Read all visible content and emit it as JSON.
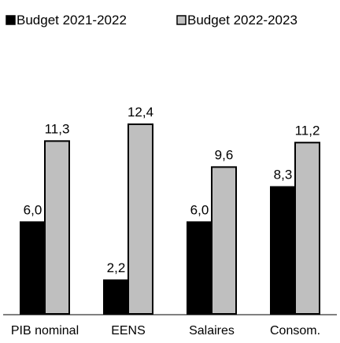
{
  "chart_data": {
    "type": "bar",
    "title": "",
    "xlabel": "",
    "ylabel": "",
    "categories": [
      "PIB nominal",
      "EENS",
      "Salaires",
      "Consom."
    ],
    "series": [
      {
        "name": "Budget 2021-2022",
        "color": "#000000",
        "values": [
          6.0,
          2.2,
          6.0,
          8.3
        ],
        "labels": [
          "6,0",
          "2,2",
          "6,0",
          "8,3"
        ]
      },
      {
        "name": "Budget 2022-2023",
        "color": "#bfbfbf",
        "values": [
          11.3,
          12.4,
          9.6,
          11.2
        ],
        "labels": [
          "11,3",
          "12,4",
          "9,6",
          "11,2"
        ]
      }
    ],
    "ylim": [
      0,
      14
    ],
    "grid": false,
    "legend_position": "top-left",
    "data_labels": true
  }
}
